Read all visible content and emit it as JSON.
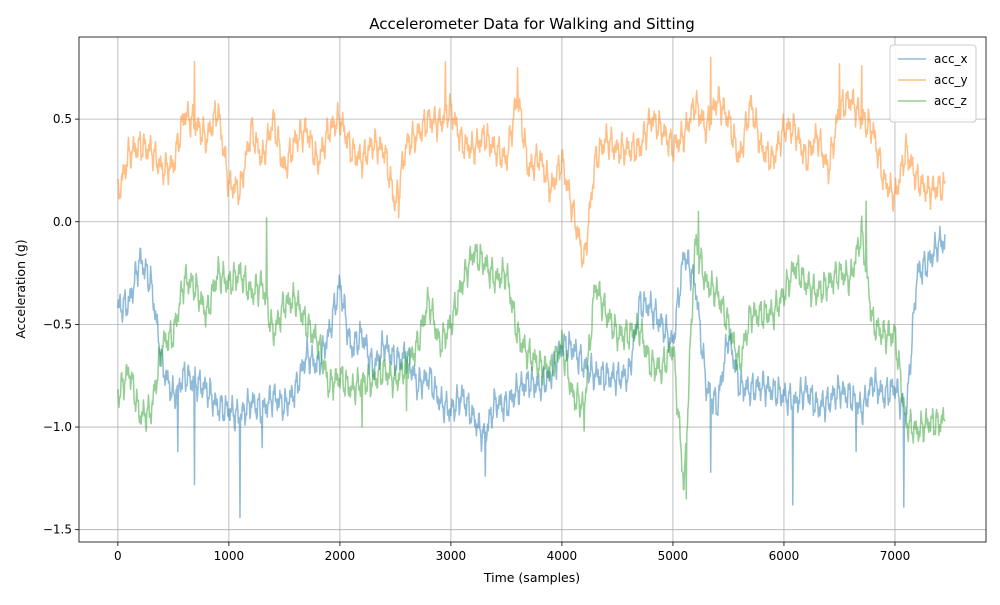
{
  "chart_data": {
    "type": "line",
    "title": "Accelerometer Data for Walking and Sitting",
    "xlabel": "Time (samples)",
    "ylabel": "Acceleration (g)",
    "xlim": [
      -350,
      7820
    ],
    "ylim": [
      -1.56,
      0.9
    ],
    "xticks": [
      0,
      1000,
      2000,
      3000,
      4000,
      5000,
      6000,
      7000
    ],
    "yticks": [
      -1.5,
      -1.0,
      -0.5,
      0.0,
      0.5
    ],
    "ytick_labels": [
      "−1.5",
      "−1.0",
      "−0.5",
      "0.0",
      "0.5"
    ],
    "grid": true,
    "legend_position": "top-right",
    "x": [
      0,
      100,
      200,
      300,
      400,
      500,
      600,
      700,
      800,
      900,
      1000,
      1100,
      1200,
      1300,
      1400,
      1500,
      1600,
      1700,
      1800,
      1900,
      2000,
      2100,
      2200,
      2300,
      2400,
      2500,
      2600,
      2700,
      2800,
      2900,
      3000,
      3100,
      3200,
      3300,
      3400,
      3500,
      3600,
      3700,
      3800,
      3900,
      4000,
      4100,
      4200,
      4300,
      4400,
      4500,
      4600,
      4700,
      4800,
      4900,
      5000,
      5100,
      5200,
      5300,
      5400,
      5500,
      5600,
      5700,
      5800,
      5900,
      6000,
      6100,
      6200,
      6300,
      6400,
      6500,
      6600,
      6700,
      6800,
      6900,
      7000,
      7100,
      7200,
      7300,
      7400,
      7450
    ],
    "series": [
      {
        "name": "acc_x",
        "color": "#1f77b4",
        "values": [
          -0.42,
          -0.4,
          -0.18,
          -0.3,
          -0.7,
          -0.85,
          -0.75,
          -0.78,
          -0.82,
          -0.9,
          -0.92,
          -0.95,
          -0.88,
          -0.92,
          -0.85,
          -0.9,
          -0.82,
          -0.65,
          -0.7,
          -0.55,
          -0.3,
          -0.62,
          -0.55,
          -0.72,
          -0.6,
          -0.68,
          -0.65,
          -0.8,
          -0.75,
          -0.88,
          -0.92,
          -0.85,
          -0.95,
          -1.05,
          -0.88,
          -0.9,
          -0.82,
          -0.78,
          -0.8,
          -0.75,
          -0.6,
          -0.62,
          -0.7,
          -0.75,
          -0.75,
          -0.76,
          -0.75,
          -0.4,
          -0.42,
          -0.5,
          -0.6,
          -0.15,
          -0.3,
          -0.8,
          -0.9,
          -0.55,
          -0.8,
          -0.82,
          -0.8,
          -0.82,
          -0.85,
          -0.88,
          -0.82,
          -0.9,
          -0.88,
          -0.82,
          -0.85,
          -0.92,
          -0.78,
          -0.85,
          -0.8,
          -0.95,
          -0.25,
          -0.2,
          -0.1,
          -0.1
        ],
        "spikes": [
          {
            "x": 540,
            "y": -1.12
          },
          {
            "x": 690,
            "y": -1.28
          },
          {
            "x": 1100,
            "y": -1.44
          },
          {
            "x": 1300,
            "y": -1.1
          },
          {
            "x": 3310,
            "y": -1.24
          },
          {
            "x": 5340,
            "y": -1.22
          },
          {
            "x": 6080,
            "y": -1.38
          },
          {
            "x": 6650,
            "y": -1.12
          },
          {
            "x": 7080,
            "y": -1.39
          }
        ]
      },
      {
        "name": "acc_y",
        "color": "#ff7f0e",
        "values": [
          0.13,
          0.33,
          0.37,
          0.35,
          0.25,
          0.28,
          0.52,
          0.48,
          0.4,
          0.55,
          0.18,
          0.15,
          0.45,
          0.3,
          0.5,
          0.25,
          0.4,
          0.45,
          0.28,
          0.45,
          0.5,
          0.35,
          0.3,
          0.38,
          0.35,
          0.08,
          0.38,
          0.42,
          0.5,
          0.48,
          0.55,
          0.38,
          0.35,
          0.42,
          0.35,
          0.3,
          0.62,
          0.25,
          0.32,
          0.15,
          0.3,
          0.05,
          -0.2,
          0.3,
          0.4,
          0.35,
          0.35,
          0.36,
          0.5,
          0.45,
          0.36,
          0.42,
          0.58,
          0.45,
          0.6,
          0.5,
          0.3,
          0.58,
          0.35,
          0.3,
          0.45,
          0.45,
          0.3,
          0.42,
          0.25,
          0.55,
          0.6,
          0.5,
          0.45,
          0.2,
          0.12,
          0.35,
          0.2,
          0.15,
          0.17,
          0.16
        ],
        "spikes": [
          {
            "x": 690,
            "y": 0.78
          },
          {
            "x": 2950,
            "y": 0.78
          },
          {
            "x": 3600,
            "y": 0.75
          },
          {
            "x": 5340,
            "y": 0.8
          },
          {
            "x": 6500,
            "y": 0.77
          },
          {
            "x": 6700,
            "y": 0.76
          },
          {
            "x": 2530,
            "y": 0.02
          }
        ]
      },
      {
        "name": "acc_z",
        "color": "#2ca02c",
        "values": [
          -0.85,
          -0.72,
          -0.95,
          -0.92,
          -0.6,
          -0.55,
          -0.28,
          -0.32,
          -0.45,
          -0.25,
          -0.3,
          -0.25,
          -0.35,
          -0.3,
          -0.55,
          -0.4,
          -0.38,
          -0.5,
          -0.58,
          -0.8,
          -0.75,
          -0.82,
          -0.78,
          -0.78,
          -0.72,
          -0.78,
          -0.7,
          -0.6,
          -0.38,
          -0.6,
          -0.5,
          -0.3,
          -0.15,
          -0.2,
          -0.28,
          -0.25,
          -0.55,
          -0.65,
          -0.7,
          -0.72,
          -0.6,
          -0.85,
          -0.9,
          -0.3,
          -0.45,
          -0.55,
          -0.55,
          -0.52,
          -0.7,
          -0.72,
          -0.6,
          -1.3,
          -0.1,
          -0.3,
          -0.35,
          -0.5,
          -0.7,
          -0.45,
          -0.45,
          -0.45,
          -0.35,
          -0.22,
          -0.3,
          -0.35,
          -0.3,
          -0.25,
          -0.28,
          -0.05,
          -0.5,
          -0.55,
          -0.55,
          -0.98,
          -1.02,
          -0.98,
          -0.98,
          -0.96
        ],
        "spikes": [
          {
            "x": 1340,
            "y": 0.02
          },
          {
            "x": 5120,
            "y": -1.35
          },
          {
            "x": 5230,
            "y": 0.05
          },
          {
            "x": 6740,
            "y": 0.1
          },
          {
            "x": 4200,
            "y": -1.02
          },
          {
            "x": 2200,
            "y": -1.0
          },
          {
            "x": 2600,
            "y": -0.92
          }
        ]
      }
    ]
  }
}
